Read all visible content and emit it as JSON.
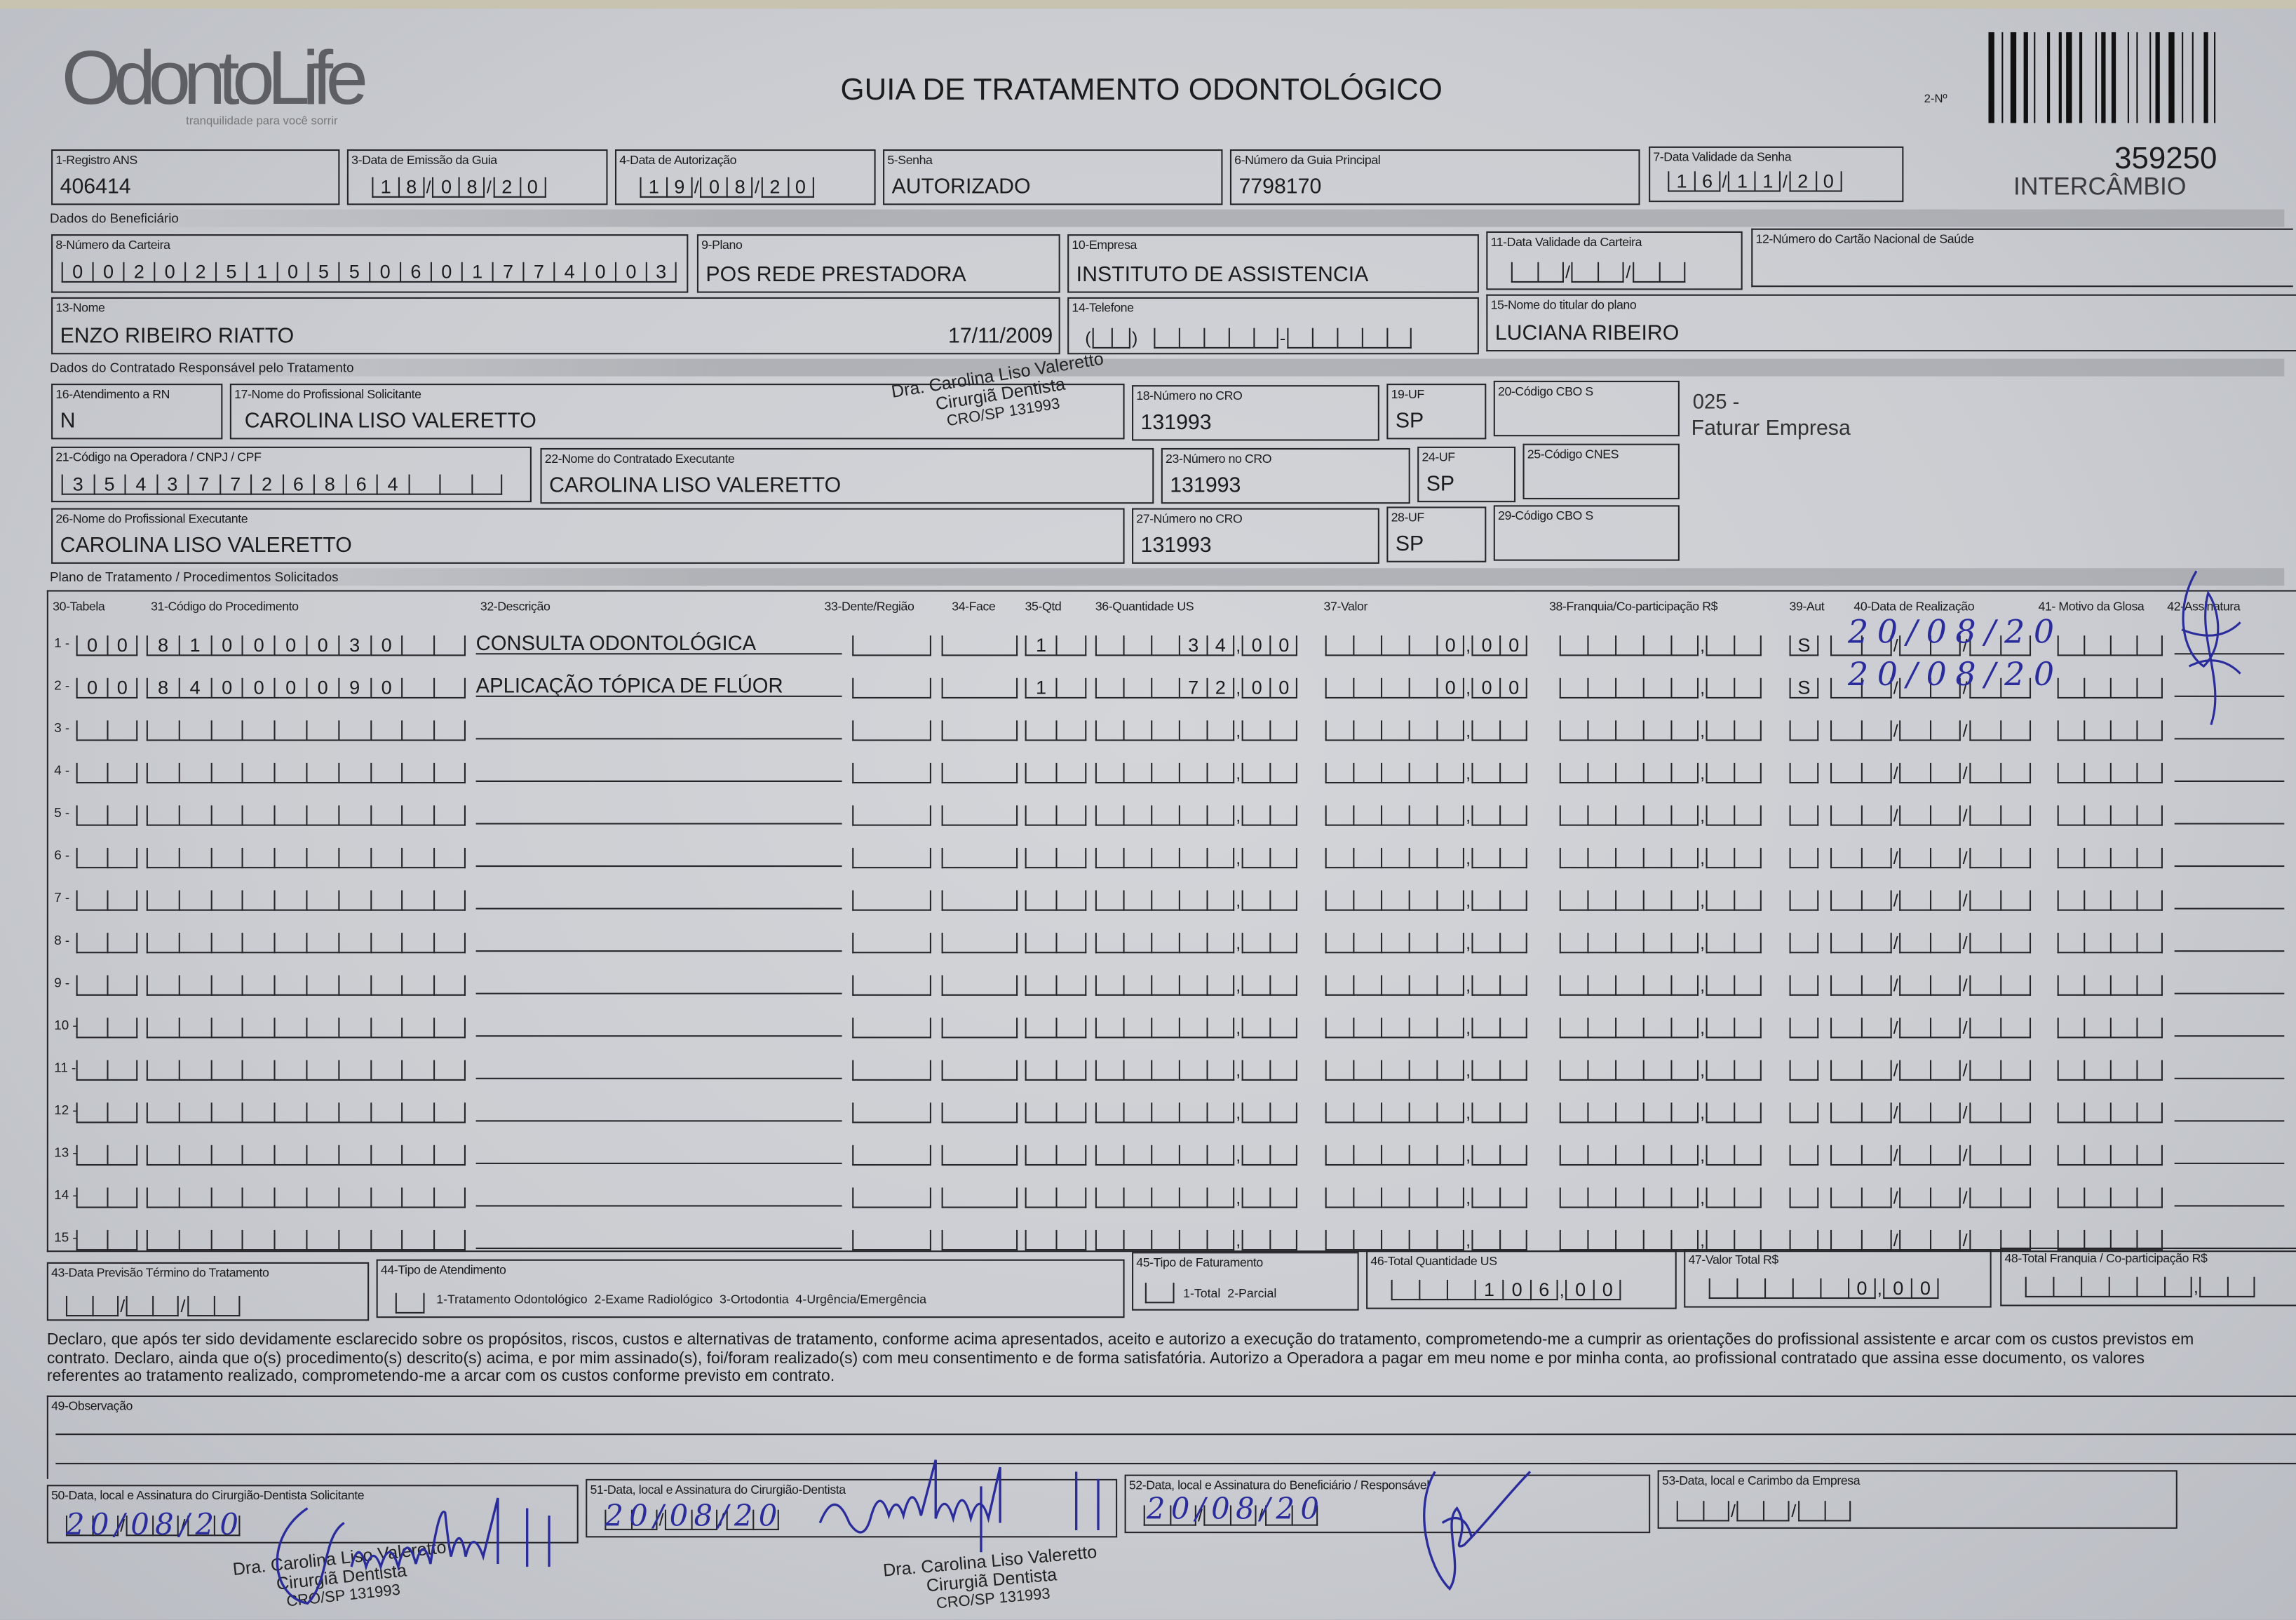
{
  "header": {
    "logo": "OdontoLife",
    "logo_tagline": "tranquilidade para você sorrir",
    "title": "GUIA DE TRATAMENTO ODONTOLÓGICO",
    "copy_label": "2-Nº",
    "guide_number": "359250",
    "guide_type": "INTERCÂMBIO"
  },
  "sections": {
    "beneficiario": "Dados do Beneficiário",
    "contratado": "Dados do Contratado Responsável pelo Tratamento",
    "plano": "Plano de Tratamento / Procedimentos Solicitados"
  },
  "fields": {
    "f1": {
      "label": "1-Registro ANS",
      "value": "406414"
    },
    "f3": {
      "label": "3-Data de Emissão da Guia",
      "value": "18/08/20"
    },
    "f4": {
      "label": "4-Data de Autorização",
      "value": "19/08/20"
    },
    "f5": {
      "label": "5-Senha",
      "value": "AUTORIZADO"
    },
    "f6": {
      "label": "6-Número da Guia Principal",
      "value": "7798170"
    },
    "f7": {
      "label": "7-Data Validade da Senha",
      "value": "16/11/20"
    },
    "f8": {
      "label": "8-Número da Carteira",
      "value": "00202510550601774003"
    },
    "f9": {
      "label": "9-Plano",
      "value": "POS REDE PRESTADORA"
    },
    "f10": {
      "label": "10-Empresa",
      "value": "INSTITUTO DE ASSISTENCIA"
    },
    "f11": {
      "label": "11-Data Validade da Carteira",
      "value": ""
    },
    "f12": {
      "label": "12-Número do Cartão Nacional de Saúde",
      "value": ""
    },
    "f13": {
      "label": "13-Nome",
      "value": "ENZO RIBEIRO RIATTO",
      "birth_date": "17/11/2009"
    },
    "f14": {
      "label": "14-Telefone",
      "value": ""
    },
    "f15": {
      "label": "15-Nome do titular do plano",
      "value": "LUCIANA RIBEIRO"
    },
    "f16": {
      "label": "16-Atendimento a RN",
      "value": "N"
    },
    "f17": {
      "label": "17-Nome do Profissional Solicitante",
      "value": "CAROLINA LISO VALERETTO"
    },
    "f18": {
      "label": "18-Número no CRO",
      "value": "131993"
    },
    "f19": {
      "label": "19-UF",
      "value": "SP"
    },
    "f20": {
      "label": "20-Código CBO S",
      "value": ""
    },
    "f21": {
      "label": "21-Código na Operadora / CNPJ / CPF",
      "value": "35437726864"
    },
    "f22": {
      "label": "22-Nome do Contratado Executante",
      "value": "CAROLINA LISO VALERETTO"
    },
    "f23": {
      "label": "23-Número no CRO",
      "value": "131993"
    },
    "f24": {
      "label": "24-UF",
      "value": "SP"
    },
    "f25": {
      "label": "25-Código CNES",
      "value": ""
    },
    "f26": {
      "label": "26-Nome do Profissional Executante",
      "value": "CAROLINA LISO VALERETTO"
    },
    "f27": {
      "label": "27-Número no CRO",
      "value": "131993"
    },
    "f28": {
      "label": "28-UF",
      "value": "SP"
    },
    "f29": {
      "label": "29-Código CBO S",
      "value": ""
    }
  },
  "billing_note": {
    "code": "025 -",
    "text": "Faturar Empresa"
  },
  "table": {
    "headers": [
      "30-Tabela",
      "31-Código do Procedimento",
      "32-Descrição",
      "33-Dente/Região",
      "34-Face",
      "35-Qtd",
      "36-Quantidade US",
      "37-Valor",
      "38-Franquia/Co-participação R$",
      "39-Aut",
      "40-Data de Realização",
      "41- Motivo da Glosa",
      "42-Assinatura"
    ],
    "rows": [
      {
        "num": "1",
        "tabela": "00",
        "codigo": "81000030",
        "descricao": "CONSULTA ODONTOLÓGICA",
        "qtd": "1",
        "qtd_us": "34,00",
        "valor": "0,00",
        "aut": "S",
        "data": "20/08/20"
      },
      {
        "num": "2",
        "tabela": "00",
        "codigo": "84000090",
        "descricao": "APLICAÇÃO TÓPICA DE FLÚOR",
        "qtd": "1",
        "qtd_us": "72,00",
        "valor": "0,00",
        "aut": "S",
        "data": "20/08/20"
      },
      {
        "num": "3"
      },
      {
        "num": "4"
      },
      {
        "num": "5"
      },
      {
        "num": "6"
      },
      {
        "num": "7"
      },
      {
        "num": "8"
      },
      {
        "num": "9"
      },
      {
        "num": "10"
      },
      {
        "num": "11"
      },
      {
        "num": "12"
      },
      {
        "num": "13"
      },
      {
        "num": "14"
      },
      {
        "num": "15"
      }
    ]
  },
  "totals": {
    "f43": {
      "label": "43-Data Previsão Término do Tratamento",
      "value": ""
    },
    "f44": {
      "label": "44-Tipo de Atendimento",
      "options": "1-Tratamento Odontológico  2-Exame Radiológico  3-Ortodontia  4-Urgência/Emergência",
      "value": ""
    },
    "f45": {
      "label": "45-Tipo de Faturamento",
      "options": "1-Total  2-Parcial",
      "value": ""
    },
    "f46": {
      "label": "46-Total Quantidade US",
      "value": "106,00"
    },
    "f47": {
      "label": "47-Valor Total R$",
      "value": "0,00"
    },
    "f48": {
      "label": "48-Total Franquia / Co-participação R$",
      "value": ""
    }
  },
  "declaration": [
    "Declaro, que após ter sido devidamente esclarecido sobre os propósitos, riscos, custos e alternativas de tratamento, conforme acima apresentados, aceito e autorizo a execução do tratamento, comprometendo-me a cumprir as orientações do profissional assistente e arcar com os custos previstos em",
    "contrato. Declaro, ainda que o(s) procedimento(s) descrito(s) acima, e por mim assinado(s), foi/foram realizado(s) com meu consentimento e de forma satisfatória. Autorizo a Operadora a pagar em meu nome e por minha conta, ao profissional contratado que assina esse documento, os valores",
    "referentes ao tratamento realizado, comprometendo-me a arcar com os custos conforme previsto em contrato."
  ],
  "observacao": {
    "label": "49-Observação",
    "value": ""
  },
  "signatures": {
    "f50": {
      "label": "50-Data, local e Assinatura do Cirurgião-Dentista Solicitante",
      "date": "20/08/20"
    },
    "f51": {
      "label": "51-Data, local e Assinatura do Cirurgião-Dentista",
      "date": "20/08/20"
    },
    "f52": {
      "label": "52-Data, local e Assinatura do Beneficiário / Responsável",
      "date": "20/08/20"
    },
    "f53": {
      "label": "53-Data, local e Carimbo da Empresa",
      "date": ""
    }
  },
  "stamp": [
    "Dra. Carolina Liso Valeretto",
    "Cirurgiã Dentista",
    "CRO/SP 131993"
  ],
  "colors": {
    "ink": "#1c1c1e",
    "pen": "#2b2c9c",
    "paper": "#cbcdd2"
  }
}
